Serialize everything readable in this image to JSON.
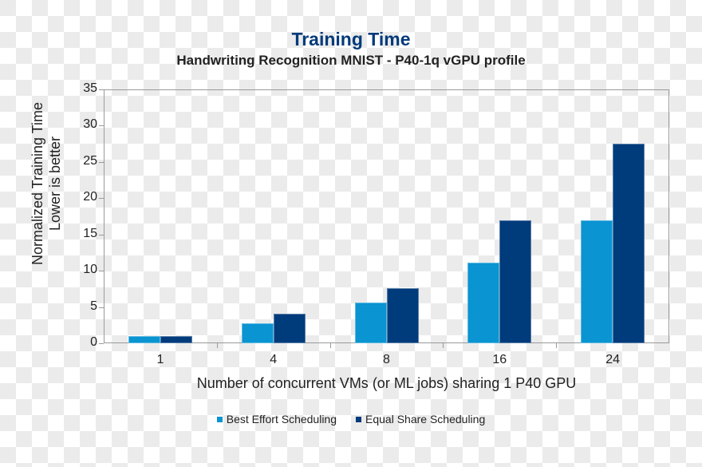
{
  "chart_data": {
    "type": "bar",
    "title": "Training Time",
    "subtitle": "Handwriting Recognition MNIST - P40-1q vGPU profile",
    "xlabel": "Number of concurrent VMs (or ML jobs) sharing 1 P40 GPU",
    "ylabel": [
      "Normalized Training Time",
      "Lower is better"
    ],
    "categories": [
      "1",
      "4",
      "8",
      "16",
      "24"
    ],
    "series": [
      {
        "name": "Best Effort Scheduling",
        "color": "#0a94d2",
        "values": [
          1.0,
          2.7,
          5.6,
          11.1,
          16.9
        ]
      },
      {
        "name": "Equal Share Scheduling",
        "color": "#003b7b",
        "values": [
          1.0,
          4.1,
          7.6,
          16.9,
          27.5
        ]
      }
    ],
    "ylim": [
      0,
      35
    ],
    "yticks": [
      0,
      5,
      10,
      15,
      20,
      25,
      30,
      35
    ],
    "grid": false,
    "legend_position": "bottom"
  }
}
